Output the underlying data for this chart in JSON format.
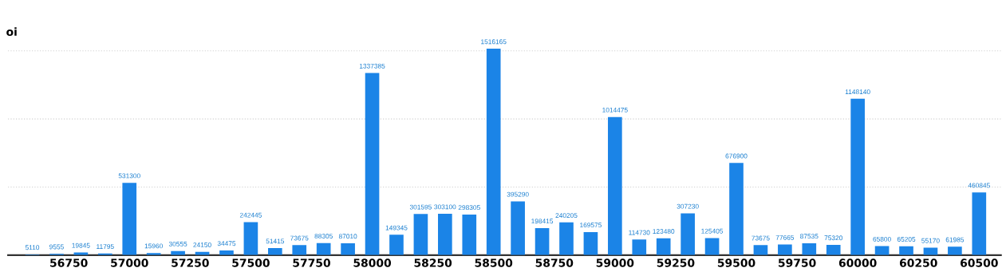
{
  "chart_data": {
    "type": "bar",
    "ylabel": "oi",
    "x": [
      56600,
      56700,
      56800,
      56900,
      57000,
      57100,
      57200,
      57300,
      57400,
      57500,
      57600,
      57700,
      57800,
      57900,
      58000,
      58100,
      58200,
      58300,
      58400,
      58500,
      58600,
      58700,
      58800,
      58900,
      59000,
      59100,
      59200,
      59300,
      59400,
      59500,
      59600,
      59700,
      59800,
      59900,
      60000,
      60100,
      60200,
      60300,
      60400,
      60500
    ],
    "values": [
      5110,
      9555,
      19845,
      11795,
      531300,
      15960,
      30555,
      24150,
      34475,
      242445,
      51415,
      73675,
      88305,
      87010,
      1337385,
      149345,
      301595,
      303100,
      298305,
      1516165,
      395290,
      198415,
      240205,
      169575,
      1014475,
      114730,
      123480,
      307230,
      125405,
      676900,
      73675,
      77665,
      87535,
      75320,
      1148140,
      65800,
      65205,
      55170,
      61985,
      460845
    ],
    "color": "#1b84e7",
    "data_labels": true,
    "xlim": [
      56500,
      60590
    ],
    "xticks": [
      56750,
      57000,
      57250,
      57500,
      57750,
      58000,
      58250,
      58500,
      58750,
      59000,
      59250,
      59500,
      59750,
      60000,
      60250,
      60500
    ],
    "yticks": [
      {
        "value": 500000,
        "label": null
      },
      {
        "value": 1000000,
        "label": null
      },
      {
        "value": 1500000,
        "label": null
      }
    ],
    "tick_labels": "x",
    "grid": "y"
  }
}
